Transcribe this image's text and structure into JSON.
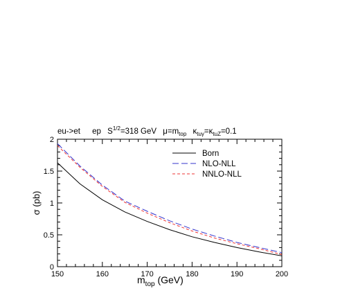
{
  "chart_data": {
    "type": "line",
    "title": {
      "process": "eu->et",
      "beam": "ep",
      "sqrt_s_base": "S",
      "sqrt_s_exp": "1/2",
      "sqrt_s_value": "=318 GeV",
      "scale": "μ=m",
      "scale_sub": "top",
      "coupling_a": "κ",
      "coupling_a_sub": "tuγ",
      "coupling_eq": "=κ",
      "coupling_b_sub": "tuZ",
      "coupling_value": "=0.1"
    },
    "xlabel": {
      "main": "m",
      "sub": "top",
      "unit": " (GeV)"
    },
    "ylabel": "σ (pb)",
    "xlim": [
      150,
      200
    ],
    "ylim": [
      0,
      2
    ],
    "xticks": [
      "150",
      "160",
      "170",
      "180",
      "190",
      "200"
    ],
    "yticks": [
      "0",
      "0.5",
      "1",
      "1.5",
      "2"
    ],
    "grid": false,
    "legend_position": "top-right",
    "x": [
      150,
      155,
      160,
      165,
      170,
      175,
      180,
      185,
      190,
      195,
      200
    ],
    "series": [
      {
        "name": "Born",
        "color": "#000000",
        "dash": "solid",
        "values": [
          1.63,
          1.3,
          1.05,
          0.86,
          0.71,
          0.58,
          0.47,
          0.38,
          0.3,
          0.23,
          0.17
        ]
      },
      {
        "name": "NLO-NLL",
        "color": "#3333cc",
        "dash": "long",
        "values": [
          1.93,
          1.58,
          1.28,
          1.03,
          0.87,
          0.72,
          0.59,
          0.48,
          0.38,
          0.3,
          0.22
        ]
      },
      {
        "name": "NNLO-NLL",
        "color": "#ee3333",
        "dash": "short",
        "values": [
          1.9,
          1.56,
          1.26,
          1.01,
          0.84,
          0.69,
          0.56,
          0.45,
          0.36,
          0.28,
          0.19
        ]
      }
    ]
  }
}
